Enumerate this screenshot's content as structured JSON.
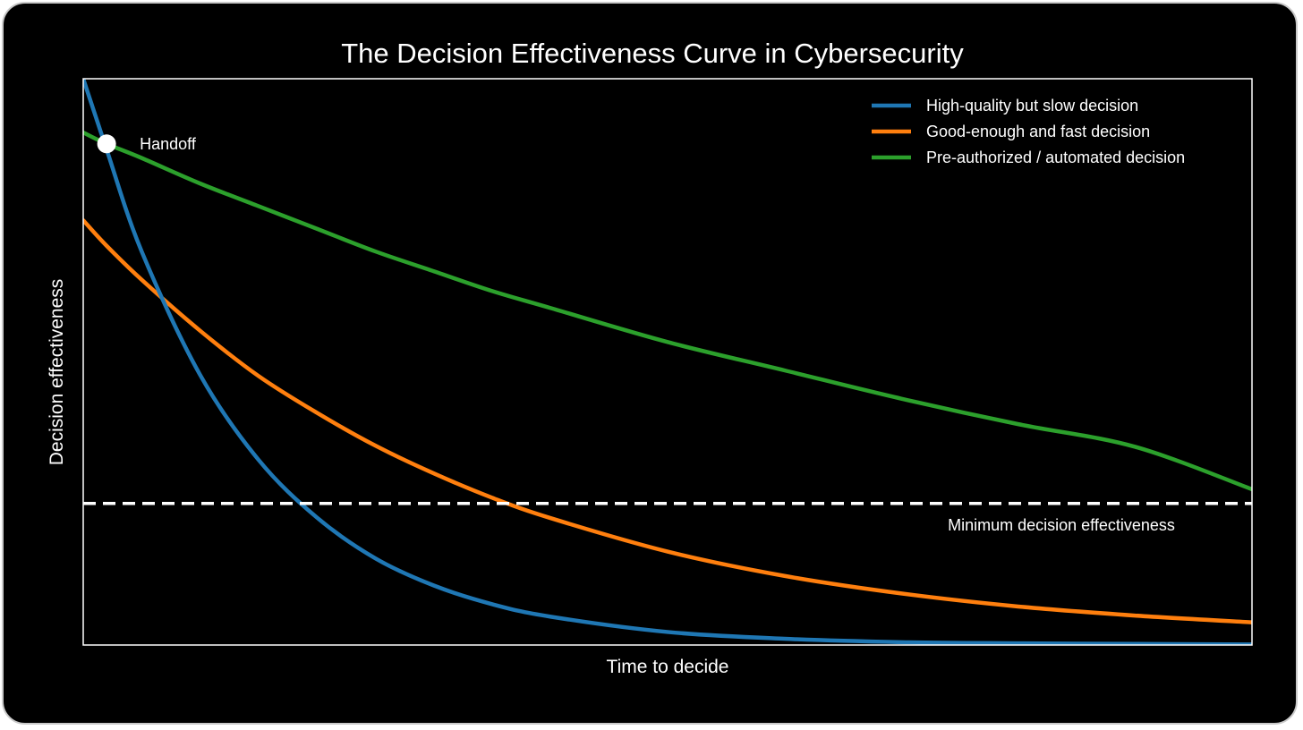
{
  "chart_data": {
    "type": "line",
    "title": "The Decision Effectiveness Curve in Cybersecurity",
    "xlabel": "Time to decide",
    "ylabel": "Decision effectiveness",
    "xlim": [
      0,
      10
    ],
    "ylim": [
      0,
      100
    ],
    "grid": false,
    "legend_position": "top-right",
    "x": [
      0,
      0.2,
      0.5,
      1,
      1.5,
      2,
      2.5,
      3,
      3.5,
      4,
      5,
      6,
      7,
      8,
      9,
      10
    ],
    "series": [
      {
        "name": "High-quality but slow decision",
        "color": "#1f77b4",
        "values": [
          100,
          87.5,
          69.5,
          47.7,
          32.7,
          22.5,
          15.3,
          10.5,
          7.2,
          5,
          2.3,
          1.1,
          0.5,
          0.3,
          0.2,
          0.1
        ]
      },
      {
        "name": "Good-enough and fast decision",
        "color": "#ff7f0e",
        "values": [
          75,
          70.5,
          64.5,
          55.5,
          47.5,
          41,
          35.2,
          30.3,
          26,
          22.4,
          16.5,
          12.2,
          9.1,
          6.8,
          5.2,
          4
        ]
      },
      {
        "name": "Pre-authorized / automated decision",
        "color": "#2ca02c",
        "values": [
          90.5,
          88.5,
          86,
          81.5,
          77.5,
          73.5,
          69.5,
          66,
          62.5,
          59.5,
          53.5,
          48.5,
          43.5,
          39,
          35,
          27.5
        ]
      }
    ],
    "threshold": {
      "label": "Minimum decision effectiveness",
      "value": 25,
      "color": "#ffffff",
      "style": "dashed"
    },
    "annotations": [
      {
        "label": "Handoff",
        "x": 0.2,
        "y": 88.5
      }
    ]
  }
}
